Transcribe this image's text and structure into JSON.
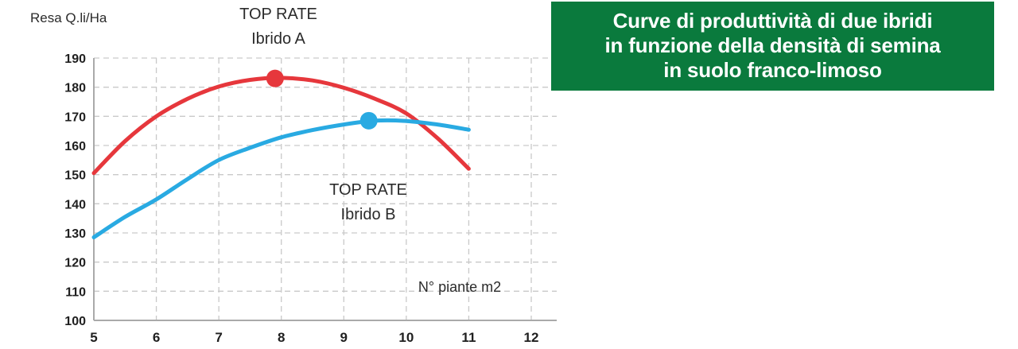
{
  "banner": {
    "lines": [
      "Curve di produttività di due ibridi",
      "in funzione della densità di semina",
      "in suolo franco-limoso"
    ],
    "bg_color": "#0a7a3d",
    "text_color": "#ffffff"
  },
  "chart_data": {
    "type": "line",
    "title": "",
    "ylabel": "Resa Q.li/Ha",
    "xlabel": "N° piante m2",
    "xlim": [
      5,
      12
    ],
    "ylim": [
      100,
      190
    ],
    "xticks": [
      5,
      6,
      7,
      8,
      9,
      10,
      11,
      12
    ],
    "yticks": [
      100,
      110,
      120,
      130,
      140,
      150,
      160,
      170,
      180,
      190
    ],
    "grid": true,
    "grid_style": "dashed",
    "legend_position": "none",
    "x": [
      5,
      5.5,
      6,
      6.5,
      7,
      7.5,
      8,
      8.5,
      9,
      9.5,
      10,
      10.5,
      11
    ],
    "series": [
      {
        "name": "TOP RATE Ibrido A",
        "label_lines": [
          "TOP RATE",
          "Ibrido A"
        ],
        "color": "#e6373c",
        "values": [
          150.5,
          161.5,
          170,
          176,
          180.2,
          182.5,
          183.2,
          182.3,
          179.8,
          176,
          171,
          162.5,
          152
        ],
        "peak_marker": {
          "x": 7.9,
          "y": 183
        }
      },
      {
        "name": "TOP RATE Ibrido B",
        "label_lines": [
          "TOP RATE",
          "Ibrido B"
        ],
        "color": "#29aae2",
        "values": [
          128.5,
          135.5,
          141.5,
          148.5,
          155,
          159.2,
          162.8,
          165.3,
          167.2,
          168.5,
          168.4,
          167.2,
          165.4
        ],
        "peak_marker": {
          "x": 9.4,
          "y": 168.5
        }
      }
    ]
  }
}
